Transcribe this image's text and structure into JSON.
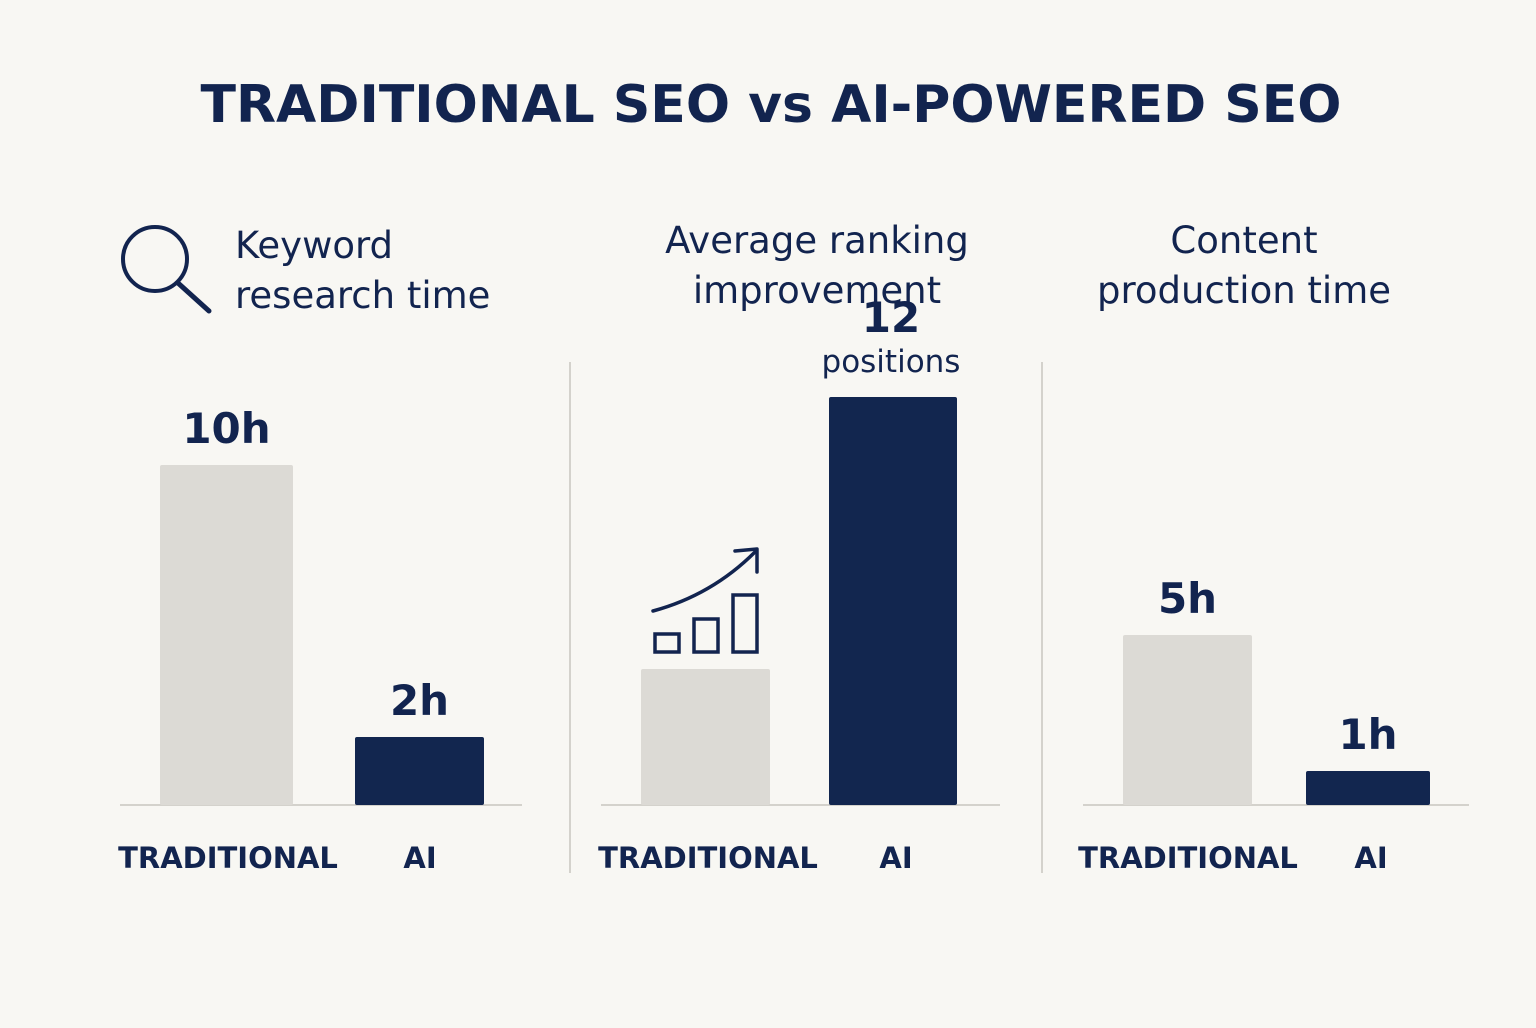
{
  "title": "TRADITIONAL SEO vs AI-POWERED SEO",
  "colors": {
    "background": "#f8f7f3",
    "text": "#12244f",
    "traditional_bar": "#dcdad5",
    "ai_bar": "#12264f",
    "axis_line": "#d4d2cc",
    "divider": "#d4d2cc"
  },
  "chart_data": [
    {
      "type": "bar",
      "title_lines": [
        "Keyword",
        "research time"
      ],
      "icon": "magnifier-icon",
      "categories": [
        "TRADITIONAL",
        "AI"
      ],
      "values": [
        10,
        2
      ],
      "unit": "h",
      "data_labels": [
        [
          "10h"
        ],
        [
          "2h"
        ]
      ],
      "ylim": [
        0,
        14
      ]
    },
    {
      "type": "bar",
      "title_lines": [
        "Average ranking",
        "improvement"
      ],
      "icon": "growth-chart-icon",
      "categories": [
        "TRADITIONAL",
        "AI"
      ],
      "values": [
        4,
        12
      ],
      "unit": "positions",
      "data_labels": [
        [],
        [
          "12",
          "positions"
        ]
      ],
      "ylim": [
        0,
        14
      ]
    },
    {
      "type": "bar",
      "title_lines": [
        "Content",
        "production time"
      ],
      "categories": [
        "TRADITIONAL",
        "AI"
      ],
      "values": [
        5,
        1
      ],
      "unit": "h",
      "data_labels": [
        [
          "5h"
        ],
        [
          "1h"
        ]
      ],
      "ylim": [
        0,
        14
      ]
    }
  ]
}
